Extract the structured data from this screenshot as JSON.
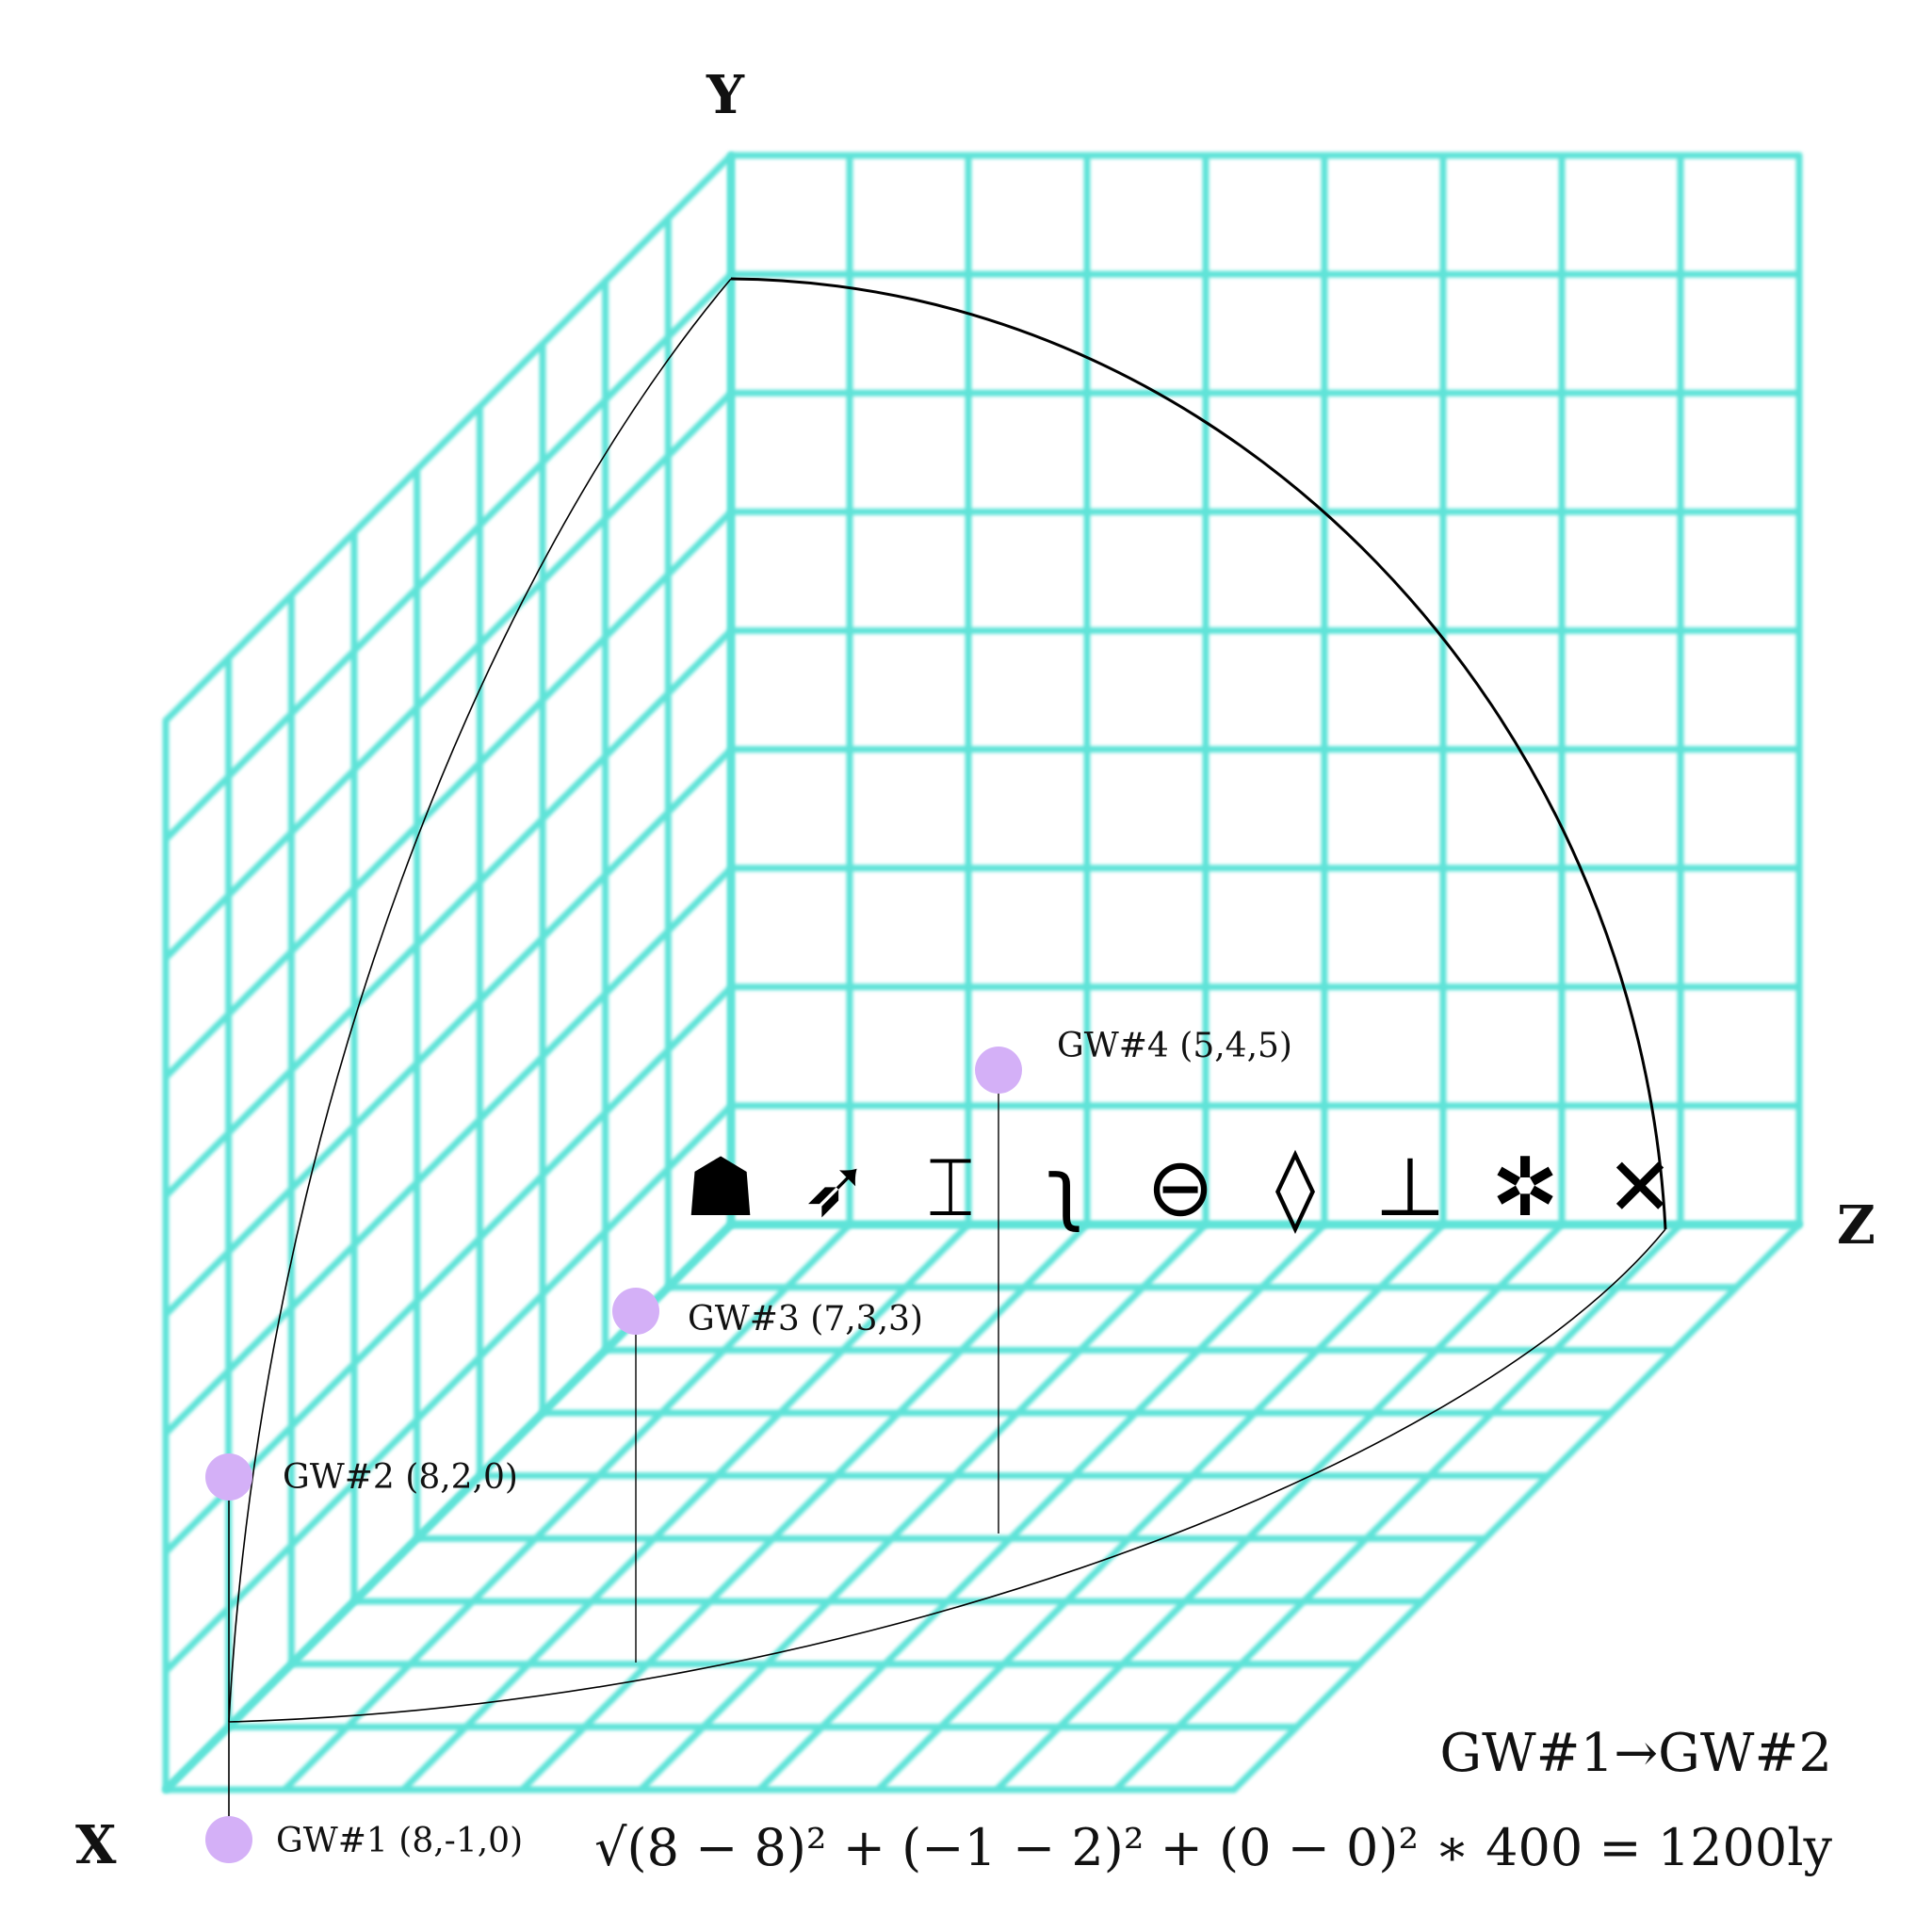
{
  "axes": {
    "x_label": "X",
    "y_label": "Y",
    "z_label": "Z"
  },
  "grid_color": "#5fe3d8",
  "point_color": "#d4b0f7",
  "gateways": [
    {
      "id": "gw1",
      "label": "GW#1 (8,-1,0)",
      "x": 8,
      "y": -1,
      "z": 0
    },
    {
      "id": "gw2",
      "label": "GW#2 (8,2,0)",
      "x": 8,
      "y": 2,
      "z": 0
    },
    {
      "id": "gw3",
      "label": "GW#3 (7,3,3)",
      "x": 7,
      "y": 3,
      "z": 3
    },
    {
      "id": "gw4",
      "label": "GW#4 (5,4,5)",
      "x": 5,
      "y": 4,
      "z": 5
    }
  ],
  "glyphs": [
    {
      "name": "basket-glyph",
      "char": "☗"
    },
    {
      "name": "bird-glyph",
      "char": "➶"
    },
    {
      "name": "frame-glyph",
      "char": "⌶"
    },
    {
      "name": "serpent-glyph",
      "char": "ʅ"
    },
    {
      "name": "crossed-circle-glyph",
      "char": "⊖"
    },
    {
      "name": "drop-glyph",
      "char": "◊"
    },
    {
      "name": "altar-glyph",
      "char": "⊥"
    },
    {
      "name": "beetle-glyph",
      "char": "✲"
    },
    {
      "name": "winged-glyph",
      "char": "✕"
    }
  ],
  "route": {
    "title": "GW#1→GW#2",
    "formula": "√(8 − 8)² + (−1 − 2)² + (0 − 0)² ∗ 400 = 1200ly",
    "result": "1200ly"
  }
}
